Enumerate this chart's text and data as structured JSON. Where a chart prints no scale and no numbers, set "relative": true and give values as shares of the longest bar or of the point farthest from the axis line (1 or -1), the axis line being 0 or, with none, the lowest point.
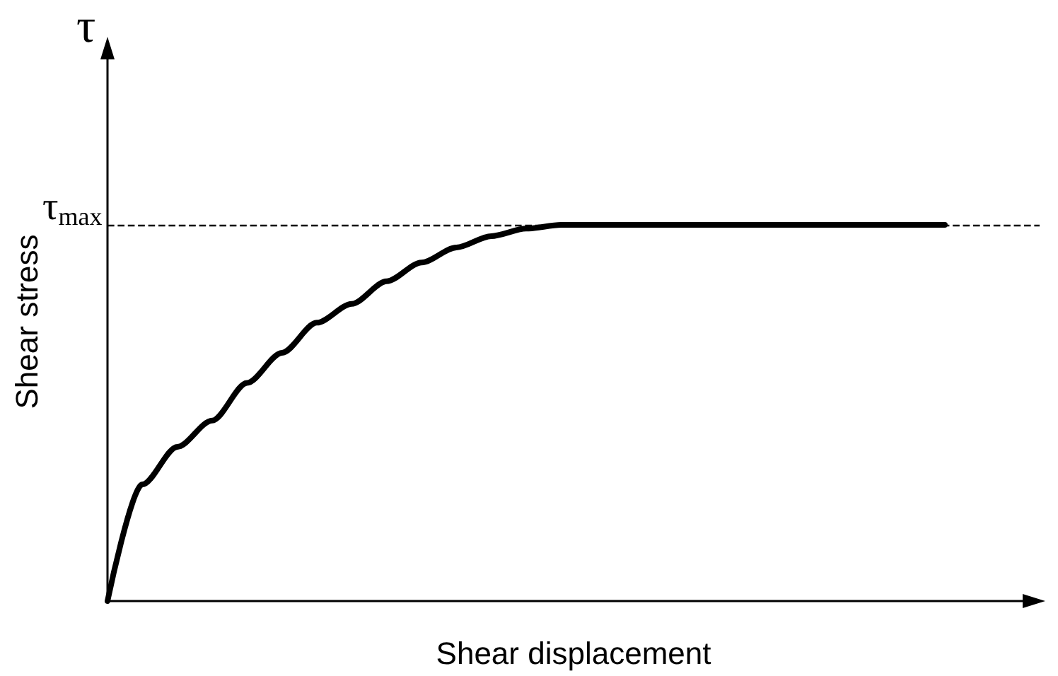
{
  "chart_data": {
    "type": "line",
    "relative": true,
    "xlabel": "Shear displacement",
    "ylabel": "Shear stress",
    "annotations": [
      "τ"
    ],
    "categories": [
      null,
      null,
      null,
      null,
      null,
      null,
      null,
      null,
      null,
      null,
      null,
      null,
      null,
      null,
      null,
      null,
      null,
      null,
      null,
      null,
      null,
      null,
      null,
      null,
      null
    ],
    "series": [
      {
        "color": "#000000",
        "values": [
          0,
          0.31,
          0.41,
          0.48,
          0.58,
          0.66,
          0.74,
          0.79,
          0.85,
          0.9,
          0.94,
          0.97,
          0.99,
          1,
          1,
          1,
          1,
          1,
          1,
          1,
          1,
          1,
          1,
          1,
          1
        ]
      }
    ],
    "ref_lines": [
      {
        "axis": "y",
        "value": 1,
        "label": "τ$_{max}$",
        "color": "#000000",
        "line_style": "dashed"
      }
    ],
    "grid": false,
    "marker": "none",
    "line_style": "solid"
  }
}
